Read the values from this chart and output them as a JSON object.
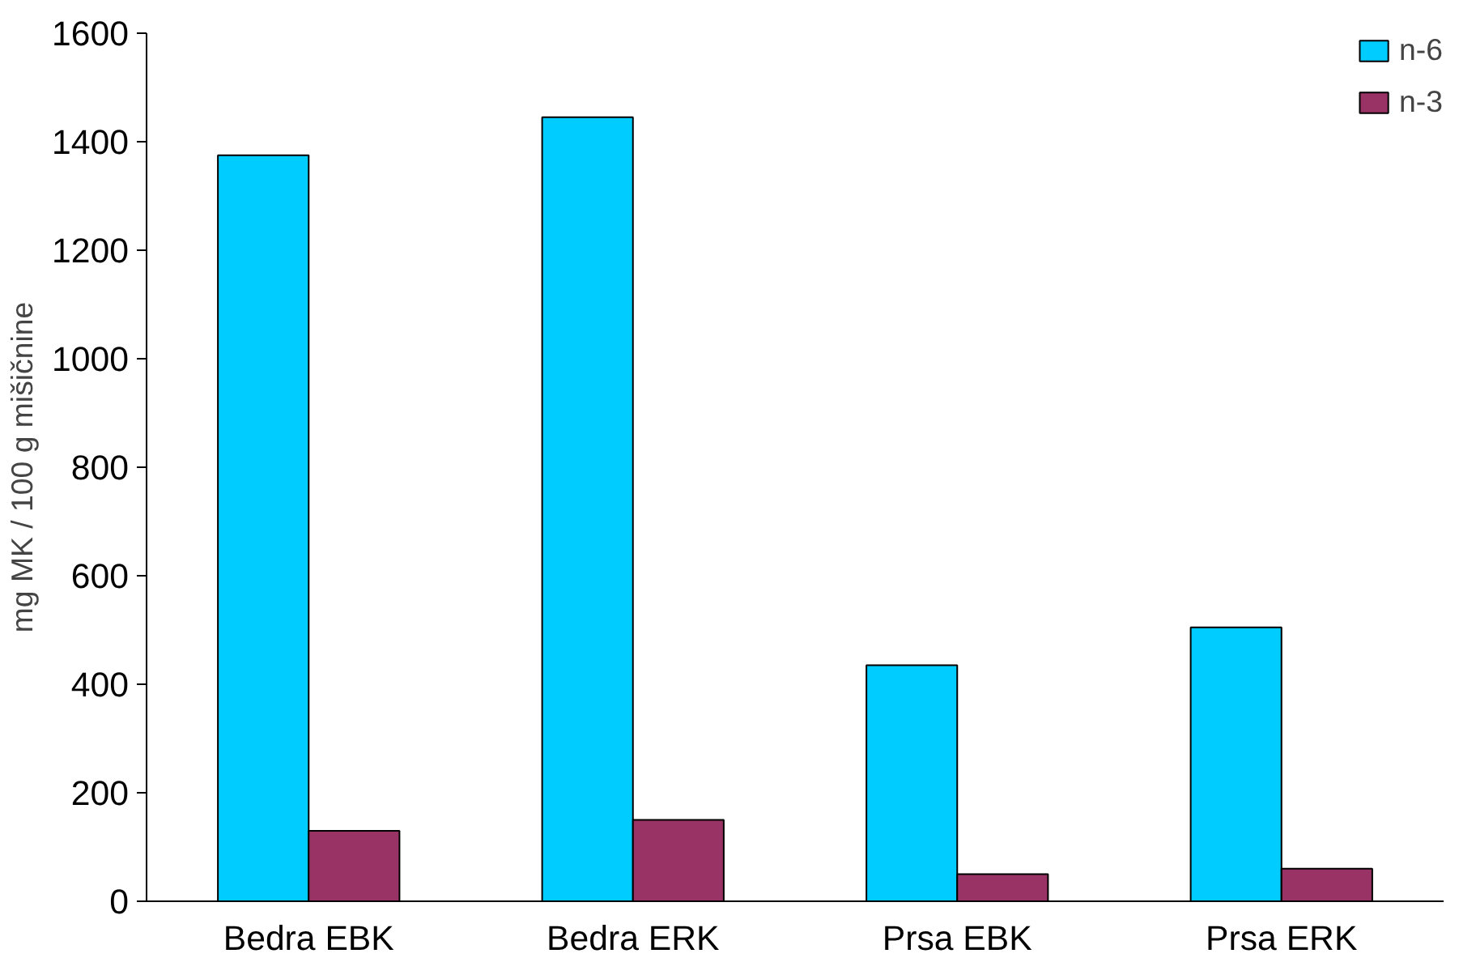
{
  "chart_data": {
    "type": "bar",
    "ylabel": "mg MK / 100 g mišičnine",
    "categories": [
      "Bedra EBK",
      "Bedra ERK",
      "Prsa EBK",
      "Prsa ERK"
    ],
    "series": [
      {
        "name": "n-6",
        "color": "#00ccff",
        "values": [
          1375,
          1445,
          435,
          505
        ]
      },
      {
        "name": "n-3",
        "color": "#993366",
        "values": [
          130,
          150,
          50,
          60
        ]
      }
    ],
    "ylim": [
      0,
      1600
    ],
    "yticks": [
      0,
      200,
      400,
      600,
      800,
      1000,
      1200,
      1400,
      1600
    ],
    "grid": false,
    "legend": "top right"
  }
}
